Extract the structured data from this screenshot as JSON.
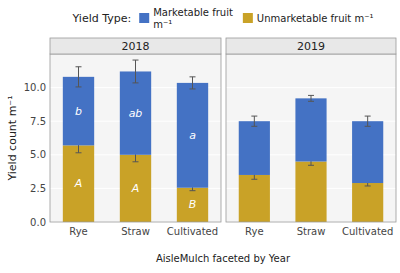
{
  "chart_data": [
    {
      "type": "bar",
      "stacked": true,
      "title": "2018",
      "xlabel": "AisleMulch faceted by Year",
      "ylabel": "Yield count m⁻¹",
      "legend": "top",
      "legend_title": "Yield Type:",
      "grid": true,
      "categories": [
        "Rye",
        "Straw",
        "Cultivated"
      ],
      "series": [
        {
          "name": "Marketable fruit\nm⁻¹",
          "color": "#4472C4",
          "values": [
            5.1,
            6.2,
            7.8
          ],
          "errors": [
            0.75,
            0.85,
            0.45
          ],
          "annotations": [
            "b",
            "ab",
            "a"
          ]
        },
        {
          "name": "Unmarketable fruit m⁻¹",
          "color": "#C9A227",
          "values": [
            5.7,
            5.0,
            2.55
          ],
          "errors": [
            0.55,
            0.52,
            0.22
          ],
          "annotations": [
            "A",
            "A",
            "B"
          ]
        }
      ],
      "ylim": [
        0,
        12.5
      ],
      "yticks": [
        {
          "value": 0,
          "label": "0.0"
        },
        2.5,
        {
          "value": 5,
          "label": "5.0"
        },
        7.5,
        {
          "value": 10,
          "label": "10.0"
        }
      ]
    },
    {
      "type": "bar",
      "stacked": true,
      "title": "2019",
      "grid": true,
      "tick_labels": "x",
      "categories": [
        "Rye",
        "Straw",
        "Cultivated"
      ],
      "series": [
        {
          "color": "#4472C4",
          "values": [
            4.0,
            4.7,
            4.6
          ],
          "errors": [
            0.38,
            0.22,
            0.38
          ]
        },
        {
          "color": "#C9A227",
          "values": [
            3.5,
            4.5,
            2.9
          ],
          "errors": [
            0.32,
            0.28,
            0.22
          ]
        }
      ],
      "ylim": [
        0,
        12.5
      ],
      "yticks": [
        0,
        2.5,
        5,
        7.5,
        10
      ]
    }
  ]
}
